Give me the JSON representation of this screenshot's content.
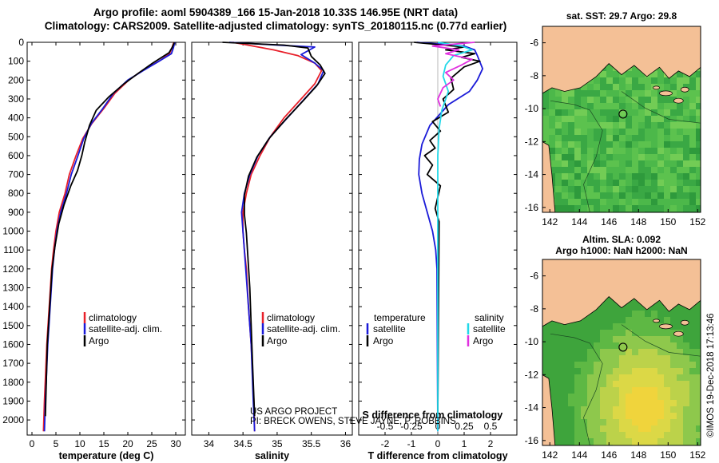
{
  "header": {
    "line1": "Argo profile: aoml 5904389_166 15-Jan-2018 10.33S 146.95E (NRT data)",
    "line2": "Climatology: CARS2009. Satellite-adjusted climatology: synTS_20180115.nc (0.77d earlier)"
  },
  "colors": {
    "climatology": "#e8202a",
    "satellite": "#1a1ad8",
    "argo": "#000000",
    "sat_salinity": "#22d8e8",
    "argo_salinity": "#e030e0",
    "land": "#f4c096",
    "sea_dark": "#2e9a3c"
  },
  "legend_labels": {
    "climatology": "climatology",
    "satellite": "satellite-adj. clim.",
    "argo": "Argo"
  },
  "legend_diff": {
    "temperature_head": "temperature",
    "salinity_head": "salinity",
    "satellite": "satellite",
    "argo": "Argo"
  },
  "credits": {
    "line1": "US ARGO PROJECT",
    "line2": "PI: BRECK OWENS, STEVE JAYNE, P. ROBBINS"
  },
  "watermark": "©IMOS 19-Dec-2018 17:13:46",
  "chart_data": [
    {
      "type": "line",
      "id": "temperature",
      "xlabel": "temperature (deg C)",
      "xlim": [
        -1,
        32
      ],
      "ylim": [
        2080,
        0
      ],
      "xticks": [
        0,
        5,
        10,
        15,
        20,
        25,
        30
      ],
      "yticks": [
        0,
        100,
        200,
        300,
        400,
        500,
        600,
        700,
        800,
        900,
        1000,
        1100,
        1200,
        1300,
        1400,
        1500,
        1600,
        1700,
        1800,
        1900,
        2000
      ],
      "series": [
        {
          "name": "climatology",
          "color": "#e8202a",
          "x": [
            29.6,
            29.2,
            28.7,
            26.5,
            23.0,
            20.2,
            17.3,
            15.0,
            12.5,
            10.6,
            9.2,
            7.8,
            6.9,
            5.7,
            5.0,
            4.5,
            4.1,
            3.6,
            3.1,
            2.6,
            2.4
          ],
          "y": [
            0,
            30,
            60,
            100,
            150,
            200,
            270,
            350,
            430,
            510,
            600,
            700,
            800,
            900,
            1000,
            1100,
            1200,
            1400,
            1600,
            1900,
            2060
          ]
        },
        {
          "name": "satellite-adj. clim.",
          "color": "#1a1ad8",
          "x": [
            29.8,
            29.5,
            29.1,
            26.5,
            23.2,
            20.0,
            17.0,
            14.8,
            12.4,
            10.8,
            9.6,
            8.2,
            7.2,
            6.0,
            5.2,
            4.7,
            4.3,
            3.8,
            3.3,
            2.8,
            2.6
          ],
          "y": [
            0,
            30,
            60,
            100,
            150,
            200,
            270,
            350,
            430,
            510,
            600,
            700,
            800,
            900,
            1000,
            1100,
            1200,
            1400,
            1600,
            1900,
            2060
          ]
        },
        {
          "name": "Argo",
          "color": "#000000",
          "x": [
            29.7,
            29.3,
            28.6,
            25.2,
            22.4,
            19.2,
            16.0,
            13.4,
            12.0,
            11.0,
            10.4,
            9.5,
            8.1,
            6.7,
            5.6,
            4.8,
            4.2,
            3.7,
            3.2,
            2.8
          ],
          "y": [
            0,
            25,
            55,
            110,
            160,
            220,
            290,
            360,
            440,
            530,
            600,
            680,
            760,
            860,
            960,
            1080,
            1200,
            1400,
            1600,
            1980
          ]
        }
      ]
    },
    {
      "type": "line",
      "id": "salinity",
      "xlabel": "salinity",
      "xlim": [
        33.75,
        36.1
      ],
      "ylim": [
        2080,
        0
      ],
      "xticks": [
        34,
        34.5,
        35,
        35.5,
        36
      ],
      "xtick_labels": [
        "34",
        "34.5",
        "35",
        "35.5",
        "36"
      ],
      "series": [
        {
          "name": "climatology",
          "color": "#e8202a",
          "x": [
            34.35,
            34.95,
            35.3,
            35.55,
            35.65,
            35.55,
            35.35,
            35.1,
            34.9,
            34.75,
            34.62,
            34.55,
            34.5,
            34.5,
            34.52,
            34.55,
            34.58,
            34.62,
            34.66,
            34.67
          ],
          "y": [
            0,
            40,
            70,
            110,
            150,
            220,
            300,
            400,
            500,
            600,
            700,
            800,
            900,
            1000,
            1100,
            1200,
            1400,
            1600,
            1900,
            2060
          ]
        },
        {
          "name": "satellite-adj. clim.",
          "color": "#1a1ad8",
          "x": [
            34.3,
            35.0,
            35.55,
            35.35,
            35.55,
            35.68,
            35.6,
            35.4,
            35.15,
            34.9,
            34.72,
            34.6,
            34.52,
            34.48,
            34.5,
            34.54,
            34.58,
            34.62,
            34.65,
            34.67
          ],
          "y": [
            0,
            15,
            25,
            65,
            110,
            150,
            220,
            300,
            400,
            500,
            600,
            700,
            800,
            900,
            1000,
            1200,
            1400,
            1600,
            1900,
            2060
          ]
        },
        {
          "name": "Argo",
          "color": "#000000",
          "x": [
            34.2,
            35.1,
            35.45,
            35.5,
            35.63,
            35.7,
            35.58,
            35.38,
            35.12,
            34.88,
            34.7,
            34.58,
            34.52,
            34.52,
            34.55,
            34.6,
            34.64,
            34.67
          ],
          "y": [
            0,
            15,
            30,
            75,
            120,
            165,
            230,
            310,
            410,
            510,
            610,
            710,
            810,
            910,
            1010,
            1300,
            1700,
            1980
          ]
        }
      ]
    },
    {
      "type": "line",
      "id": "difference",
      "xlabel": "T difference from climatology",
      "xlim": [
        -3,
        3
      ],
      "ylim": [
        2080,
        0
      ],
      "xticks": [
        -2,
        -1,
        0,
        1,
        2
      ],
      "top_axis": {
        "label": "S difference from climatology",
        "range": [
          -0.75,
          0.75
        ],
        "ticks": [
          "-0.5",
          "-0.25",
          "0",
          "0.25",
          "0.5"
        ]
      },
      "series": [
        {
          "name": "temperature satellite",
          "color": "#1a1ad8",
          "x": [
            -0.8,
            1.0,
            1.4,
            1.5,
            1.7,
            1.5,
            1.2,
            0.4,
            -0.3,
            -0.6,
            -0.7,
            -0.72,
            -0.6,
            -0.4,
            -0.2,
            -0.08,
            -0.03,
            0
          ],
          "y": [
            0,
            20,
            40,
            70,
            140,
            200,
            260,
            330,
            440,
            540,
            620,
            700,
            800,
            900,
            1000,
            1100,
            1200,
            2060
          ]
        },
        {
          "name": "temperature Argo",
          "color": "#000000",
          "x": [
            -0.9,
            1.0,
            0.3,
            1.4,
            0.9,
            1.6,
            1.0,
            0.5,
            0.6,
            0.2,
            0.4,
            -0.2,
            0.1,
            -0.3,
            -0.1,
            -0.5,
            -0.2,
            -0.4,
            0.1,
            0.0,
            -0.1,
            0.05,
            0.0
          ],
          "y": [
            0,
            25,
            40,
            60,
            80,
            100,
            130,
            190,
            250,
            300,
            370,
            420,
            470,
            520,
            560,
            600,
            650,
            700,
            760,
            820,
            880,
            950,
            1980
          ]
        },
        {
          "name": "salinity satellite",
          "color": "#22d8e8",
          "x": [
            0.0,
            0.9,
            1.3,
            0.6,
            0.3,
            0.2,
            0.4,
            0.15,
            0.05,
            0.0,
            0.0
          ],
          "y": [
            0,
            20,
            40,
            70,
            120,
            180,
            260,
            360,
            460,
            600,
            2060
          ]
        },
        {
          "name": "salinity Argo",
          "color": "#e030e0",
          "x": [
            1.4,
            -0.2,
            0.8,
            0.3,
            1.3,
            0.9,
            0.3,
            0.6,
            0.2,
            0.0,
            0.1
          ],
          "y": [
            0,
            20,
            40,
            60,
            90,
            120,
            160,
            200,
            240,
            300,
            340
          ]
        }
      ]
    }
  ],
  "maps": [
    {
      "title1": "sat. SST: 29.7 Argo: 29.8",
      "title2": "",
      "xticks": [
        "142",
        "144",
        "146",
        "148",
        "150",
        "152"
      ],
      "yticks": [
        "-6",
        "-8",
        "-10",
        "-12",
        "-14",
        "-16"
      ]
    },
    {
      "title1": "Altim. SLA: 0.092",
      "title2": "Argo h1000: NaN h2000: NaN",
      "xticks": [
        "142",
        "144",
        "146",
        "148",
        "150",
        "152"
      ],
      "yticks": [
        "-6",
        "-8",
        "-10",
        "-12",
        "-14",
        "-16"
      ]
    }
  ]
}
